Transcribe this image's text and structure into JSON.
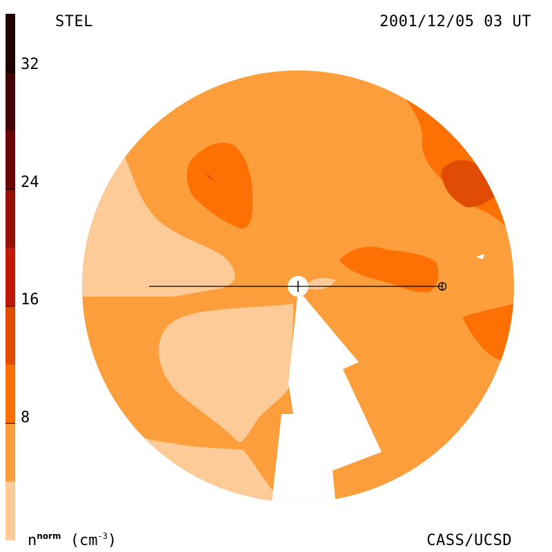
{
  "header": {
    "left_label": "STEL",
    "right_label": "2001/12/05 03 UT"
  },
  "footer": {
    "right_label": "CASS/UCSD",
    "units_base": "n",
    "units_sup": "norm",
    "units_unit": "(cm",
    "units_exp": "-3",
    "units_close": ")"
  },
  "colorbar": {
    "ticks": [
      "32",
      "24",
      "16",
      "8"
    ],
    "min": 0,
    "max": 36,
    "bins": [
      {
        "from": 0,
        "to": 4,
        "color": "#fdcb98"
      },
      {
        "from": 4,
        "to": 8,
        "color": "#fc9e3c"
      },
      {
        "from": 8,
        "to": 12,
        "color": "#fd7004"
      },
      {
        "from": 12,
        "to": 16,
        "color": "#e14c05"
      },
      {
        "from": 16,
        "to": 20,
        "color": "#c0180a"
      },
      {
        "from": 20,
        "to": 24,
        "color": "#951007"
      },
      {
        "from": 24,
        "to": 28,
        "color": "#6a0704"
      },
      {
        "from": 28,
        "to": 32,
        "color": "#400404"
      },
      {
        "from": 32,
        "to": 36,
        "color": "#1f0000"
      }
    ]
  },
  "map_colors": {
    "background": "#fc9e3c",
    "low": "#fdcb98",
    "mid": "#fd7004",
    "high": "#e14c05"
  }
}
